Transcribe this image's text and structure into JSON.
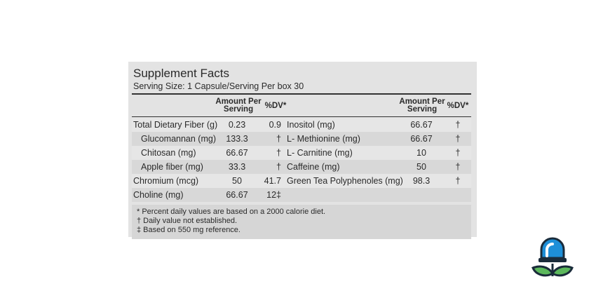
{
  "label": {
    "title": "Supplement Facts",
    "serving": "Serving Size: 1 Capsule/Serving Per box 30",
    "header": {
      "amount_line1": "Amount Per",
      "amount_line2": "Serving",
      "dv": "%DV*"
    },
    "rows": [
      {
        "left": [
          "Total Dietary Fiber (g)",
          "0.23",
          "0.9"
        ],
        "right": [
          "Inositol (mg)",
          "66.67",
          "†"
        ]
      },
      {
        "left": [
          "Glucomannan (mg)",
          "133.3",
          "†"
        ],
        "right": [
          "L- Methionine (mg)",
          "66.67",
          "†"
        ]
      },
      {
        "left": [
          "Chitosan (mg)",
          "66.67",
          "†"
        ],
        "right": [
          "L- Carnitine (mg)",
          "10",
          "†"
        ]
      },
      {
        "left": [
          "Apple fiber (mg)",
          "33.3",
          "†"
        ],
        "right": [
          "Caffeine (mg)",
          "50",
          "†"
        ]
      },
      {
        "left": [
          "Chromium (mcg)",
          "50",
          "41.7"
        ],
        "right": [
          "Green Tea Polyphenoles (mg)",
          "98.3",
          "†"
        ]
      },
      {
        "left": [
          "Choline (mg)",
          "66.67",
          "12‡"
        ]
      }
    ],
    "footnotes": [
      "* Percent daily values are based on a 2000 calorie diet.",
      "† Daily value not established.",
      "‡ Based on 550 mg reference."
    ]
  }
}
